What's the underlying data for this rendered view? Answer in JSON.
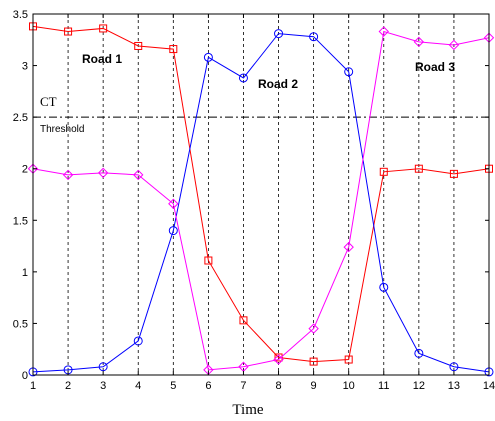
{
  "chart_data": {
    "type": "line",
    "x": [
      1,
      2,
      3,
      4,
      5,
      6,
      7,
      8,
      9,
      10,
      11,
      12,
      13,
      14
    ],
    "xlabel": "Time",
    "xlim": [
      1,
      14
    ],
    "ylim": [
      0,
      3.5
    ],
    "xticks": [
      "1",
      "2",
      "3",
      "4",
      "5",
      "6",
      "7",
      "8",
      "9",
      "10",
      "11",
      "12",
      "13",
      "14"
    ],
    "yticks": [
      "0",
      "0.5",
      "1",
      "1.5",
      "2",
      "2.5",
      "3",
      "3.5"
    ],
    "vertical_gridlines": "dashed at every integer x",
    "threshold": {
      "value": 2.5,
      "label_top": "CT",
      "label_bottom": "Threshold",
      "style": "dash-dot"
    },
    "series": [
      {
        "name": "Road 1",
        "color": "#ff0000",
        "marker": "square",
        "values": [
          3.38,
          3.33,
          3.36,
          3.19,
          3.16,
          1.11,
          0.53,
          0.17,
          0.13,
          0.15,
          1.97,
          2.0,
          1.95,
          2.0
        ]
      },
      {
        "name": "Road 2",
        "color": "#0000ff",
        "marker": "circle",
        "values": [
          0.03,
          0.05,
          0.08,
          0.33,
          1.4,
          3.08,
          2.88,
          3.31,
          3.28,
          2.94,
          0.85,
          0.21,
          0.08,
          0.03
        ]
      },
      {
        "name": "Road 3",
        "color": "#ff00ff",
        "marker": "diamond",
        "values": [
          2.0,
          1.94,
          1.96,
          1.94,
          1.66,
          0.05,
          0.08,
          0.15,
          0.45,
          1.24,
          3.33,
          3.23,
          3.2,
          3.27
        ]
      }
    ]
  }
}
